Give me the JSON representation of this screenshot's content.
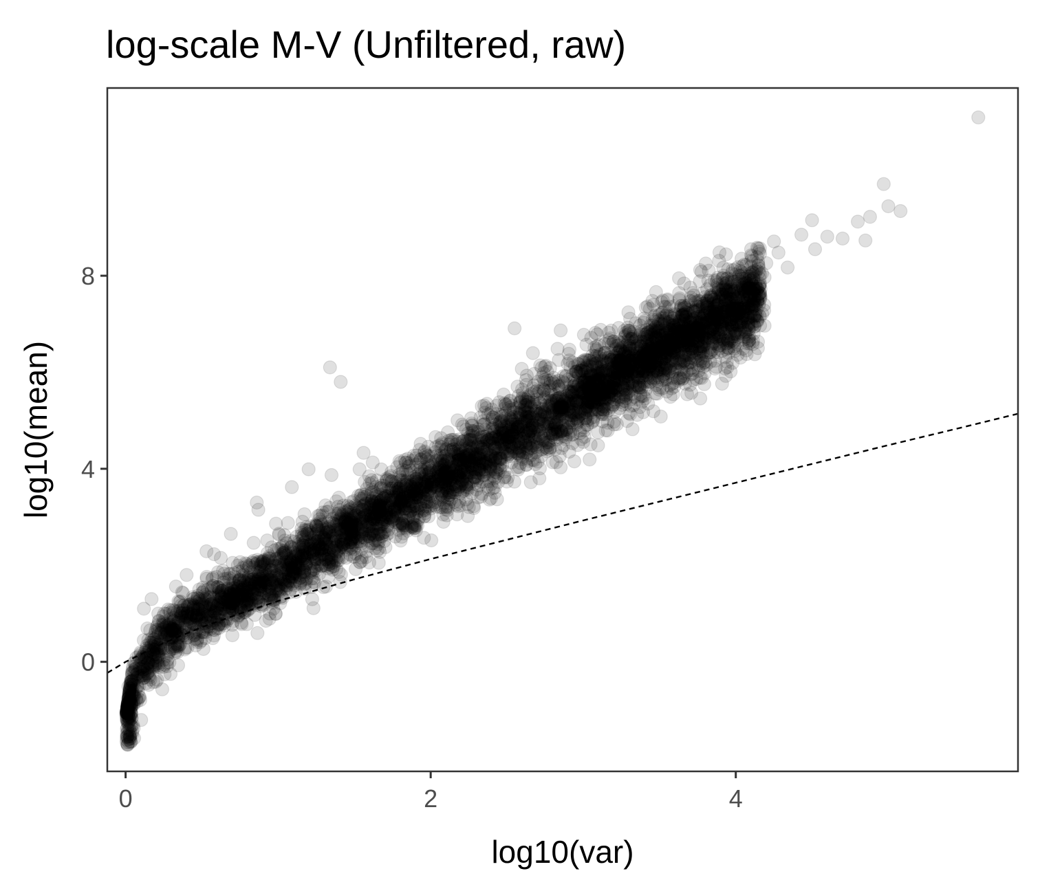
{
  "chart_data": {
    "type": "scatter",
    "title": "log-scale M-V (Unfiltered, raw)",
    "xlabel": "log10(var)",
    "ylabel": "log10(mean)",
    "xlim": [
      -0.12,
      5.85
    ],
    "ylim": [
      -2.27,
      11.89
    ],
    "xticks": [
      0,
      2,
      4
    ],
    "yticks": [
      0,
      4,
      8
    ],
    "grid": false,
    "legend": "none",
    "point_color": "#000000",
    "point_opacity": 0.12,
    "reference_line": {
      "style": "dashed",
      "color": "#000000",
      "x": [
        -0.12,
        0.0,
        0.25,
        0.5,
        0.75,
        1.0,
        1.5,
        2.0,
        2.5,
        3.0,
        3.5,
        4.0,
        4.5,
        5.0,
        5.5,
        5.85
      ],
      "y": [
        -0.23,
        0.0,
        0.39,
        0.72,
        1.0,
        1.26,
        1.71,
        2.13,
        2.53,
        2.93,
        3.32,
        3.71,
        4.1,
        4.49,
        4.87,
        5.14
      ]
    },
    "outliers": {
      "x": [
        5.59,
        4.97,
        5.0,
        5.08,
        4.6,
        4.8,
        4.88,
        4.85,
        4.5,
        4.43,
        4.7,
        4.52,
        4.25,
        4.14,
        4.28,
        4.2,
        4.34,
        2.55,
        1.34,
        1.41,
        1.2,
        1.35,
        0.69,
        0.86,
        0.87,
        1.09,
        1.56,
        1.62,
        0.53,
        0.58,
        0.6,
        0.33,
        0.37,
        0.12,
        0.17,
        0.4,
        0.7,
        0.92
      ],
      "y": [
        11.28,
        9.9,
        9.44,
        9.34,
        8.81,
        9.12,
        9.22,
        8.73,
        9.15,
        8.85,
        8.77,
        8.55,
        8.71,
        8.58,
        8.48,
        8.26,
        8.17,
        6.91,
        6.1,
        5.8,
        3.99,
        3.87,
        2.65,
        3.3,
        3.15,
        3.62,
        4.33,
        4.13,
        2.29,
        2.23,
        1.1,
        1.56,
        1.44,
        1.1,
        1.3,
        1.8,
        0.55,
        0.85
      ]
    },
    "trend": {
      "description": "dense point cloud of genes following mean ≈ var^~1.5 (log-log), spread ~0.6",
      "x_range": [
        0.0,
        4.2
      ],
      "center_y": {
        "x": [
          0.0,
          0.05,
          0.15,
          0.3,
          0.5,
          0.75,
          1.0,
          1.5,
          2.0,
          2.5,
          3.0,
          3.5,
          4.0,
          4.2
        ],
        "y": [
          -1.7,
          -0.55,
          0.1,
          0.6,
          1.0,
          1.4,
          1.85,
          2.75,
          3.65,
          4.6,
          5.55,
          6.45,
          7.3,
          7.6
        ]
      }
    }
  }
}
